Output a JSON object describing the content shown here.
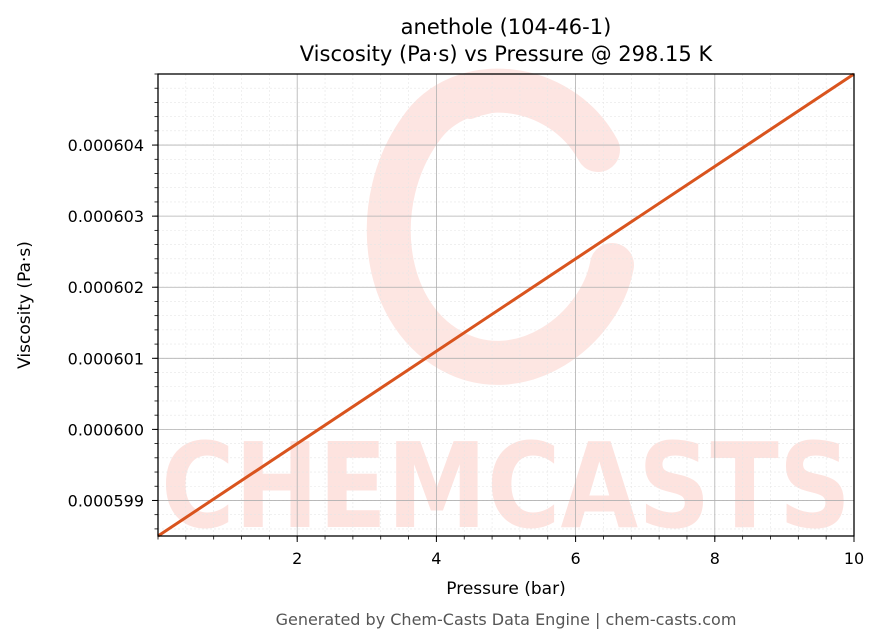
{
  "chart_data": {
    "type": "line",
    "title_line1": "anethole (104-46-1)",
    "title_line2": "Viscosity (Pa·s) vs Pressure @ 298.15 K",
    "xlabel": "Pressure (bar)",
    "ylabel": "Viscosity (Pa·s)",
    "xlim": [
      0.0,
      10.0
    ],
    "ylim": [
      0.0005985,
      0.000605
    ],
    "x_ticks": [
      2,
      4,
      6,
      8,
      10
    ],
    "x_tick_labels": [
      "2",
      "4",
      "6",
      "8",
      "10"
    ],
    "y_ticks": [
      0.000599,
      0.0006,
      0.000601,
      0.000602,
      0.000603,
      0.000604
    ],
    "y_tick_labels": [
      "0.000599",
      "0.000600",
      "0.000601",
      "0.000602",
      "0.000603",
      "0.000604"
    ],
    "grid": true,
    "series": [
      {
        "color": "#d9541e",
        "x": [
          0.0,
          10.0
        ],
        "y": [
          0.0005985,
          0.000605
        ]
      }
    ]
  },
  "watermark_text": "CHEMCASTS",
  "footer": "Generated by Chem-Casts Data Engine | chem-casts.com",
  "colors": {
    "line": "#d9541e",
    "watermark": "#fde3df",
    "footer": "#555555"
  }
}
